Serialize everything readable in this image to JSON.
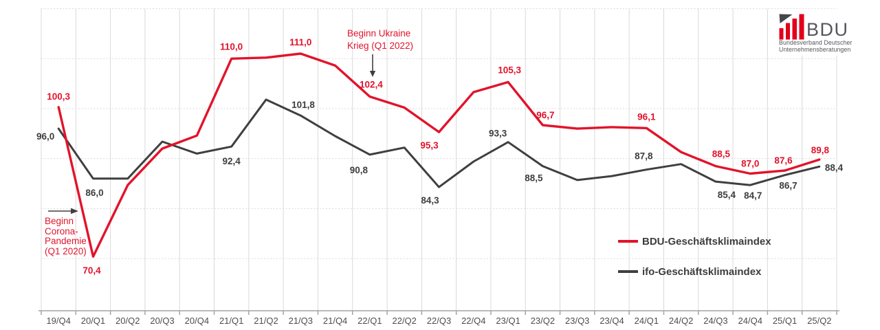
{
  "chart_data": {
    "type": "line",
    "title": "",
    "xlabel": "",
    "ylabel": "",
    "grid": true,
    "y_gridlines": [
      70,
      80,
      90,
      100,
      110,
      120
    ],
    "ylim": [
      60,
      122
    ],
    "legend_position": "bottom-right",
    "categories": [
      "19/Q4",
      "20/Q1",
      "20/Q2",
      "20/Q3",
      "20/Q4",
      "21/Q1",
      "21/Q2",
      "21/Q3",
      "21/Q4",
      "22/Q1",
      "22/Q2",
      "22/Q3",
      "22/Q4",
      "23/Q1",
      "23/Q2",
      "23/Q3",
      "23/Q4",
      "24/Q1",
      "24/Q2",
      "24/Q3",
      "24/Q4",
      "25/Q1",
      "25/Q2"
    ],
    "series": [
      {
        "name": "ifo-Geschäftsklimaindex",
        "color": "#3f3f3f",
        "label_color": "#3d3d3d",
        "values": [
          96.0,
          86.0,
          86.0,
          93.4,
          91.0,
          92.4,
          101.8,
          98.6,
          94.5,
          90.8,
          92.2,
          84.3,
          89.4,
          93.3,
          88.5,
          85.7,
          86.5,
          87.8,
          88.9,
          85.4,
          84.7,
          86.7,
          88.4
        ],
        "point_labels": [
          {
            "i": 0,
            "text": "96,0",
            "dx": -19,
            "dy": 16,
            "anchor": "middle"
          },
          {
            "i": 1,
            "text": "86,0",
            "dx": 2,
            "dy": 25,
            "anchor": "middle"
          },
          {
            "i": 5,
            "text": "92,4",
            "dx": 0,
            "dy": 26,
            "anchor": "middle"
          },
          {
            "i": 6,
            "text": "101,8",
            "dx": 54,
            "dy": 12,
            "anchor": "middle"
          },
          {
            "i": 9,
            "text": "90,8",
            "dx": -16,
            "dy": 27,
            "anchor": "middle"
          },
          {
            "i": 11,
            "text": "84,3",
            "dx": -13,
            "dy": 24,
            "anchor": "middle"
          },
          {
            "i": 13,
            "text": "93,3",
            "dx": -15,
            "dy": -8,
            "anchor": "middle"
          },
          {
            "i": 14,
            "text": "88,5",
            "dx": -13,
            "dy": 22,
            "anchor": "middle"
          },
          {
            "i": 17,
            "text": "87,8",
            "dx": -4,
            "dy": -15,
            "anchor": "middle"
          },
          {
            "i": 19,
            "text": "85,4",
            "dx": 16,
            "dy": 24,
            "anchor": "middle"
          },
          {
            "i": 20,
            "text": "84,7",
            "dx": 4,
            "dy": 20,
            "anchor": "middle"
          },
          {
            "i": 21,
            "text": "86,7",
            "dx": 5,
            "dy": 20,
            "anchor": "middle"
          },
          {
            "i": 22,
            "text": "88,4",
            "dx": 8,
            "dy": 6,
            "anchor": "start"
          }
        ]
      },
      {
        "name": "BDU-Geschäftsklimaindex",
        "color": "#e2132b",
        "label_color": "#e2132b",
        "values": [
          100.3,
          70.4,
          84.7,
          92.0,
          94.6,
          110.0,
          110.2,
          111.0,
          108.6,
          102.4,
          100.2,
          95.3,
          103.3,
          105.3,
          96.7,
          96.0,
          96.3,
          96.1,
          91.3,
          88.5,
          87.0,
          87.6,
          89.8
        ],
        "point_labels": [
          {
            "i": 0,
            "text": "100,3",
            "dx": 0,
            "dy": -11,
            "anchor": "middle"
          },
          {
            "i": 1,
            "text": "70,4",
            "dx": -2,
            "dy": 25,
            "anchor": "middle"
          },
          {
            "i": 5,
            "text": "110,0",
            "dx": 0,
            "dy": -13,
            "anchor": "middle"
          },
          {
            "i": 7,
            "text": "111,0",
            "dx": 0,
            "dy": -12,
            "anchor": "middle"
          },
          {
            "i": 9,
            "text": "102,4",
            "dx": 2,
            "dy": -13,
            "anchor": "middle"
          },
          {
            "i": 11,
            "text": "95,3",
            "dx": -14,
            "dy": 24,
            "anchor": "middle"
          },
          {
            "i": 13,
            "text": "105,3",
            "dx": 2,
            "dy": -13,
            "anchor": "middle"
          },
          {
            "i": 14,
            "text": "96,7",
            "dx": 4,
            "dy": -10,
            "anchor": "middle"
          },
          {
            "i": 17,
            "text": "96,1",
            "dx": 0,
            "dy": -12,
            "anchor": "middle"
          },
          {
            "i": 19,
            "text": "88,5",
            "dx": 8,
            "dy": -13,
            "anchor": "middle"
          },
          {
            "i": 20,
            "text": "87,0",
            "dx": 0,
            "dy": -10,
            "anchor": "middle"
          },
          {
            "i": 21,
            "text": "87,6",
            "dx": -2,
            "dy": -10,
            "anchor": "middle"
          },
          {
            "i": 22,
            "text": "89,8",
            "dx": 1,
            "dy": -9,
            "anchor": "middle"
          }
        ]
      }
    ]
  },
  "legend": {
    "items": [
      {
        "label": "BDU-Geschäftsklimaindex",
        "color": "#e2132b"
      },
      {
        "label": "ifo-Geschäftsklimaindex",
        "color": "#3f3f3f"
      }
    ]
  },
  "annotations": {
    "corona": {
      "lines": [
        "Beginn",
        "Corona-",
        "Pandemie",
        "(Q1 2020)"
      ],
      "color": "#e2132b",
      "arrow": "right"
    },
    "ukraine": {
      "lines": [
        "Beginn Ukraine",
        "Krieg (Q1 2022)"
      ],
      "color": "#e2132b",
      "arrow": "down"
    }
  },
  "logo": {
    "acronym": "BDU",
    "subtitle_lines": [
      "Bundesverband Deutscher",
      "Unternehmensberatungen"
    ],
    "bar_color": "#e2001a",
    "triangle_color": "#46474c",
    "text_color": "#55565b"
  },
  "axis": {
    "line_color": "#a3a3a3",
    "tick_label_color": "#4d4d4d",
    "grid_color": "#d9d9d9"
  }
}
